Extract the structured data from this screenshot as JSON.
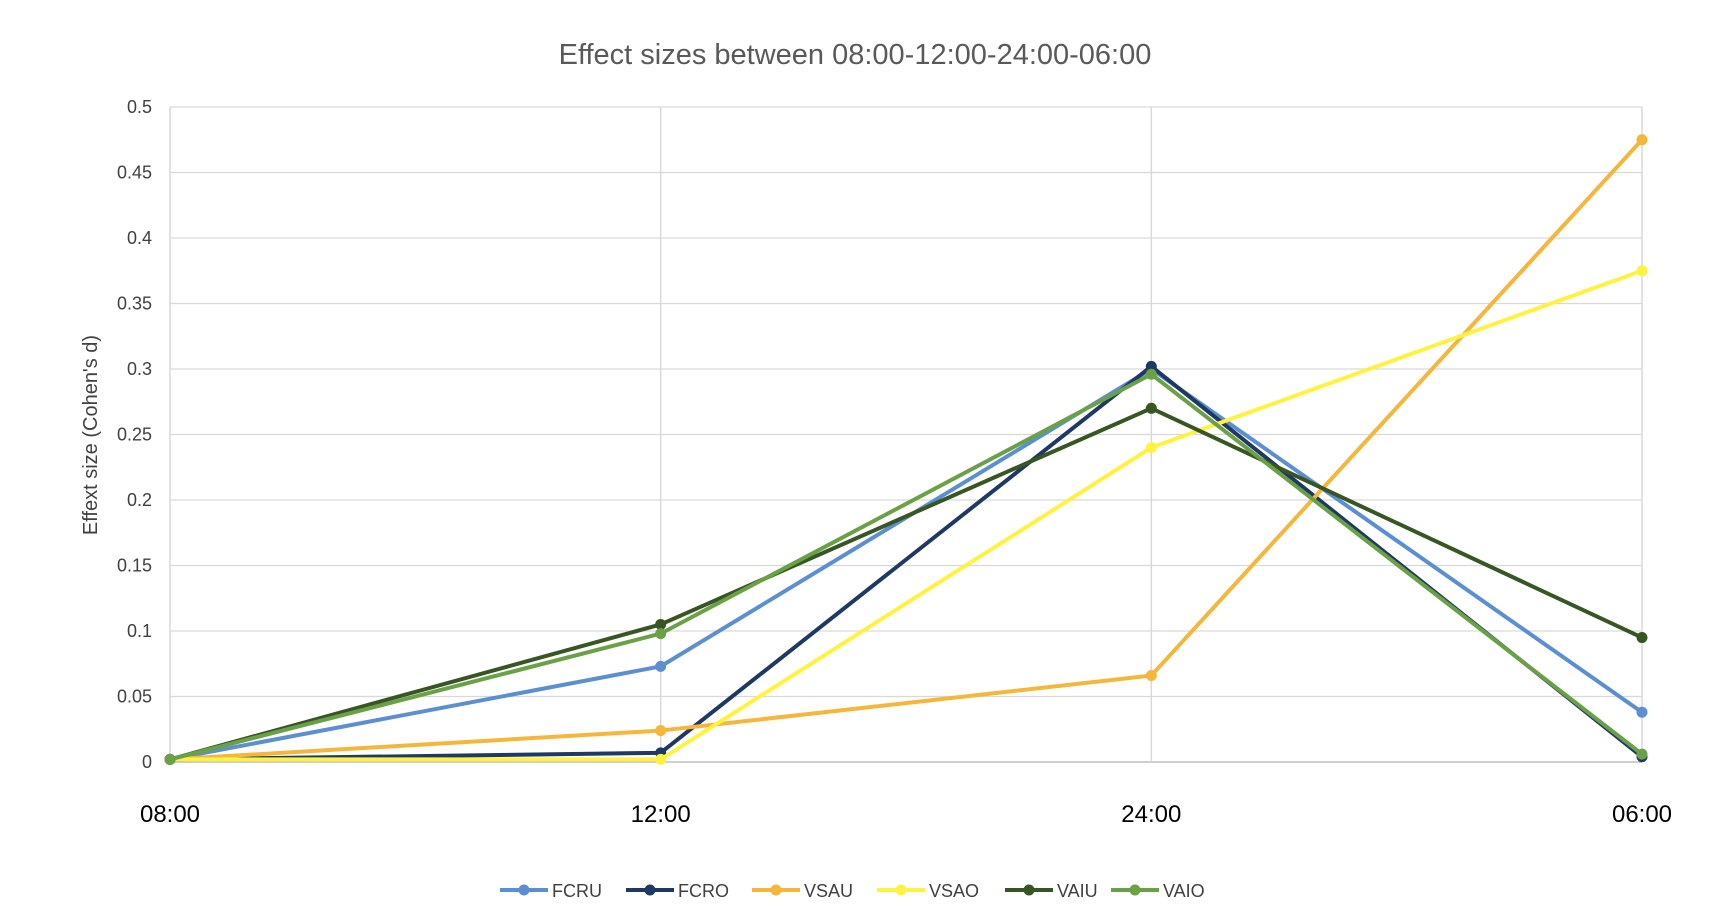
{
  "chart_data": {
    "type": "line",
    "title": "Effect sizes between 08:00-12:00-24:00-06:00",
    "xlabel": "",
    "ylabel": "Effext size (Cohen's d)",
    "categories": [
      "08:00",
      "12:00",
      "24:00",
      "06:00"
    ],
    "ylim": [
      0,
      0.5
    ],
    "yticks": [
      0,
      0.05,
      0.1,
      0.15,
      0.2,
      0.25,
      0.3,
      0.35,
      0.4,
      0.45,
      0.5
    ],
    "ytick_labels": [
      "0",
      "0.05",
      "0.1",
      "0.15",
      "0.2",
      "0.25",
      "0.3",
      "0.35",
      "0.4",
      "0.45",
      "0.5"
    ],
    "grid": true,
    "legend_position": "bottom",
    "series": [
      {
        "name": "FCRU",
        "color": "#5B8FD1",
        "values": [
          0.002,
          0.073,
          0.3,
          0.038
        ]
      },
      {
        "name": "FCRO",
        "color": "#1F3864",
        "values": [
          0.002,
          0.007,
          0.302,
          0.004
        ]
      },
      {
        "name": "VSAU",
        "color": "#F4B63B",
        "values": [
          0.002,
          0.024,
          0.066,
          0.475
        ]
      },
      {
        "name": "VSAO",
        "color": "#FFF240",
        "values": [
          0.002,
          0.002,
          0.24,
          0.375
        ]
      },
      {
        "name": "VAIU",
        "color": "#375623",
        "values": [
          0.002,
          0.105,
          0.27,
          0.095
        ]
      },
      {
        "name": "VAIO",
        "color": "#6AA046",
        "values": [
          0.002,
          0.098,
          0.296,
          0.006
        ]
      }
    ]
  }
}
